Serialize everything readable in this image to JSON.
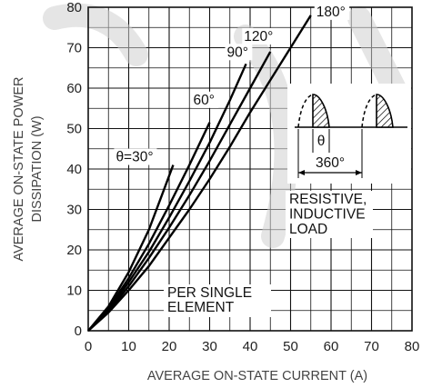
{
  "chart_data": {
    "type": "line",
    "xlabel": "AVERAGE ON-STATE CURRENT (A)",
    "ylabel_lines": [
      "AVERAGE ON-STATE POWER",
      "DISSIPATION (W)"
    ],
    "xlim": [
      0,
      80
    ],
    "ylim": [
      0,
      80
    ],
    "x_ticks": [
      0,
      10,
      20,
      30,
      40,
      50,
      60,
      70,
      80
    ],
    "y_ticks": [
      0,
      10,
      20,
      30,
      40,
      50,
      60,
      70,
      80
    ],
    "grid": true,
    "series": [
      {
        "name": "θ=30°",
        "points": [
          [
            0,
            0
          ],
          [
            5,
            6
          ],
          [
            10,
            14.5
          ],
          [
            15,
            25
          ],
          [
            18,
            33
          ],
          [
            21,
            41
          ]
        ]
      },
      {
        "name": "60°",
        "points": [
          [
            0,
            0
          ],
          [
            5,
            5.5
          ],
          [
            10,
            13
          ],
          [
            15,
            21.5
          ],
          [
            20,
            31
          ],
          [
            25,
            41
          ],
          [
            30,
            51.5
          ]
        ]
      },
      {
        "name": "90°",
        "points": [
          [
            0,
            0
          ],
          [
            5,
            5.2
          ],
          [
            10,
            12
          ],
          [
            15,
            19.5
          ],
          [
            20,
            28
          ],
          [
            25,
            37
          ],
          [
            30,
            46.5
          ],
          [
            35,
            57
          ],
          [
            39,
            66
          ]
        ]
      },
      {
        "name": "120°",
        "points": [
          [
            0,
            0
          ],
          [
            5,
            4.8
          ],
          [
            10,
            11
          ],
          [
            15,
            18
          ],
          [
            20,
            25.5
          ],
          [
            25,
            33.5
          ],
          [
            30,
            42
          ],
          [
            35,
            51
          ],
          [
            40,
            60
          ],
          [
            45,
            69
          ]
        ]
      },
      {
        "name": "180°",
        "points": [
          [
            0,
            0
          ],
          [
            5,
            4.5
          ],
          [
            10,
            10
          ],
          [
            15,
            16
          ],
          [
            20,
            23
          ],
          [
            25,
            30
          ],
          [
            30,
            37.5
          ],
          [
            35,
            45.5
          ],
          [
            40,
            54
          ],
          [
            45,
            62
          ],
          [
            50,
            70
          ],
          [
            55,
            78
          ]
        ]
      }
    ],
    "annotations": {
      "inset_theta": "θ",
      "inset_period": "360°",
      "load_lines": [
        "RESISTIVE,",
        "INDUCTIVE",
        "LOAD"
      ],
      "element_lines": [
        "PER SINGLE",
        "ELEMENT"
      ]
    }
  }
}
